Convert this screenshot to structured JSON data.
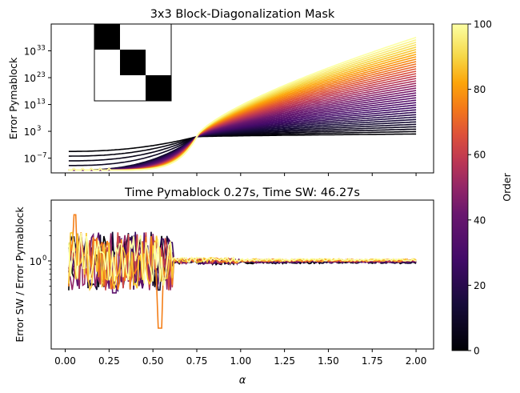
{
  "chart_data": [
    {
      "type": "line",
      "title": "3x3 Block-Diagonalization Mask",
      "xlabel": "",
      "ylabel": "Error Pymablock",
      "yscale": "log",
      "ylim_log10": [
        -12.5,
        43
      ],
      "yticks": [
        {
          "exp": -7,
          "label": "10",
          "sup": "−7"
        },
        {
          "exp": 3,
          "label": "10",
          "sup": "3"
        },
        {
          "exp": 13,
          "label": "10",
          "sup": "13"
        },
        {
          "exp": 23,
          "label": "10",
          "sup": "23"
        },
        {
          "exp": 33,
          "label": "10",
          "sup": "33"
        }
      ],
      "xlim": [
        -0.08,
        2.1
      ],
      "xticks": [
        0.0,
        0.25,
        0.5,
        0.75,
        1.0,
        1.25,
        1.5,
        1.75,
        2.0
      ],
      "series_count": 41,
      "order_range": [
        0,
        100
      ],
      "description": "One curve per perturbation order (0-100). Low orders are flat near 1e-5..1e0; all curves cross near alpha≈0.75; high orders rise to ~1e38 at alpha=2 and sit near 1e-11 for alpha<0.5.",
      "crossover_alpha": 0.75,
      "samples_alpha": [
        0.02,
        0.3,
        0.55,
        0.75,
        1.0,
        1.25,
        1.5,
        1.75,
        2.0
      ],
      "samples_log10": {
        "order_0": [
          -4.5,
          -3.5,
          -2.5,
          1.0,
          1.3,
          1.6,
          1.8,
          1.9,
          2.0
        ],
        "order_50": [
          -11.5,
          -11.5,
          -5.0,
          1.0,
          8.5,
          14.0,
          18.5,
          22.5,
          26.0
        ],
        "order_100": [
          -11.5,
          -11.5,
          -5.0,
          1.0,
          12.5,
          21.0,
          28.0,
          33.5,
          38.0
        ]
      },
      "inset": {
        "type": "heatmap",
        "shape": [
          3,
          3
        ],
        "mask": [
          [
            1,
            0,
            0
          ],
          [
            0,
            1,
            0
          ],
          [
            0,
            0,
            1
          ]
        ],
        "on_color": "#000000",
        "off_color": "#ffffff"
      }
    },
    {
      "type": "line",
      "title": "Time Pymablock 0.27s, Time SW: 46.27s",
      "xlabel": "α",
      "ylabel": "Error SW / Error Pymablock",
      "yscale": "log",
      "yticks": [
        {
          "exp": 0,
          "label": "10",
          "sup": "0"
        }
      ],
      "xlim": [
        -0.08,
        2.1
      ],
      "xticks": [
        0.0,
        0.25,
        0.5,
        0.75,
        1.0,
        1.25,
        1.5,
        1.75,
        2.0
      ],
      "xtick_labels": [
        "0.00",
        "0.25",
        "0.50",
        "0.75",
        "1.00",
        "1.25",
        "1.50",
        "1.75",
        "2.00"
      ],
      "series_count": 9,
      "description": "Ratio of SW error to Pymablock error per order; noisy between 0.3 and 3 for alpha<0.6, dip to ~0.15 at alpha≈0.55, then flat ≈1.0 for alpha>0.6."
    }
  ],
  "colorbar": {
    "label": "Order",
    "min": 0,
    "max": 100,
    "ticks": [
      0,
      20,
      40,
      60,
      80,
      100
    ],
    "colormap": "inferno"
  }
}
